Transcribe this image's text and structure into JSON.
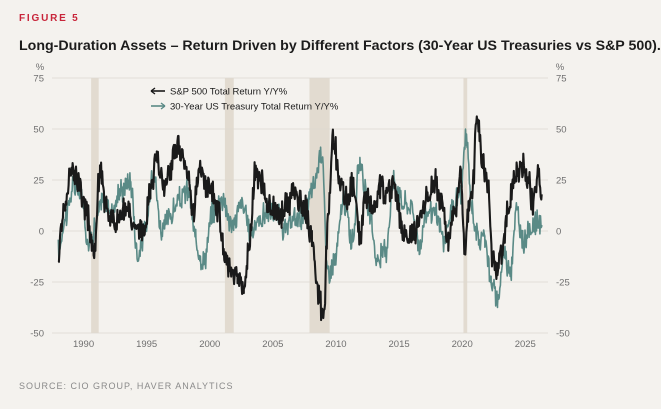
{
  "figure_label": "FIGURE 5",
  "source": "SOURCE: CIO GROUP, HAVER ANALYTICS",
  "chart_data": {
    "type": "line",
    "title": "Long-Duration Assets – Return Driven by Different Factors (30-Year US Treasuries vs S&P 500).",
    "y_unit_left": "%",
    "y_unit_right": "%",
    "ylim": [
      -50,
      75
    ],
    "xlim": [
      1987.5,
      2026.8
    ],
    "y_ticks": [
      75,
      50,
      25,
      0,
      -25,
      -50
    ],
    "y_tick_labels": [
      "75",
      "50",
      "25",
      "0",
      "-25",
      "-50"
    ],
    "x_ticks": [
      1990,
      1995,
      2000,
      2005,
      2010,
      2015,
      2020,
      2025
    ],
    "x_tick_labels": [
      "1990",
      "1995",
      "2000",
      "2005",
      "2010",
      "2015",
      "2020",
      "2025"
    ],
    "grid": "horizontal",
    "legend_placement": "top-left",
    "recessions": [
      [
        1990.6,
        1991.2
      ],
      [
        2001.2,
        2001.9
      ],
      [
        2007.9,
        2009.5
      ],
      [
        2020.1,
        2020.4
      ]
    ],
    "series": [
      {
        "name": "S&P 500 Total Return Y/Y%",
        "color": "#1a1a1a",
        "x": [
          1988.0,
          1988.5,
          1989.0,
          1989.6,
          1990.2,
          1990.8,
          1991.3,
          1991.8,
          1992.5,
          1993.2,
          1994.0,
          1994.8,
          1995.3,
          1995.8,
          1996.3,
          1996.8,
          1997.3,
          1997.8,
          1998.3,
          1998.7,
          1999.2,
          1999.7,
          2000.2,
          2000.7,
          2001.2,
          2001.7,
          2002.2,
          2002.7,
          2003.1,
          2003.6,
          2004.1,
          2004.6,
          2005.1,
          2005.6,
          2006.1,
          2006.6,
          2007.1,
          2007.6,
          2008.1,
          2008.6,
          2009.0,
          2009.4,
          2009.8,
          2010.3,
          2010.8,
          2011.4,
          2011.9,
          2012.4,
          2012.9,
          2013.5,
          2014.0,
          2014.6,
          2015.2,
          2015.8,
          2016.3,
          2016.8,
          2017.4,
          2017.9,
          2018.4,
          2018.9,
          2019.4,
          2019.9,
          2020.2,
          2020.5,
          2020.8,
          2021.2,
          2021.6,
          2022.0,
          2022.4,
          2022.8,
          2023.2,
          2023.6,
          2024.0,
          2024.4,
          2024.8,
          2025.2,
          2025.6,
          2026.0,
          2026.3
        ],
        "y": [
          -8,
          12,
          30,
          25,
          10,
          -12,
          30,
          12,
          6,
          12,
          2,
          0,
          20,
          35,
          22,
          28,
          40,
          38,
          26,
          10,
          32,
          22,
          18,
          8,
          -12,
          -18,
          -20,
          -30,
          -10,
          28,
          26,
          10,
          10,
          8,
          12,
          18,
          14,
          10,
          -4,
          -30,
          -45,
          10,
          45,
          24,
          15,
          22,
          0,
          18,
          12,
          22,
          18,
          22,
          2,
          -2,
          -1,
          10,
          18,
          24,
          14,
          -4,
          10,
          28,
          -12,
          12,
          20,
          55,
          32,
          24,
          -12,
          -18,
          -10,
          10,
          24,
          28,
          32,
          26,
          14,
          30,
          18
        ]
      },
      {
        "name": "30-Year US Treasury Total Return Y/Y%",
        "color": "#5a8a86",
        "x": [
          1988.0,
          1988.6,
          1989.2,
          1989.8,
          1990.4,
          1990.9,
          1991.5,
          1992.2,
          1993.0,
          1993.7,
          1994.3,
          1994.9,
          1995.5,
          1996.2,
          1996.9,
          1997.6,
          1998.3,
          1998.9,
          1999.5,
          2000.3,
          2001.0,
          2001.8,
          2002.5,
          2003.2,
          2003.9,
          2004.6,
          2005.3,
          2006.0,
          2006.8,
          2007.5,
          2008.2,
          2008.9,
          2009.3,
          2009.9,
          2010.6,
          2011.3,
          2011.9,
          2012.6,
          2013.3,
          2013.9,
          2014.6,
          2015.3,
          2016.0,
          2016.6,
          2017.2,
          2017.9,
          2018.6,
          2019.2,
          2019.9,
          2020.3,
          2020.8,
          2021.3,
          2021.8,
          2022.3,
          2022.8,
          2023.3,
          2023.8,
          2024.3,
          2024.8,
          2025.3,
          2025.8,
          2026.3
        ],
        "y": [
          -10,
          8,
          22,
          18,
          -6,
          2,
          15,
          10,
          20,
          25,
          -12,
          0,
          30,
          0,
          8,
          15,
          20,
          -5,
          -15,
          10,
          16,
          2,
          14,
          0,
          5,
          10,
          8,
          0,
          6,
          8,
          22,
          40,
          -20,
          -15,
          15,
          -5,
          35,
          10,
          -15,
          -10,
          25,
          14,
          12,
          -8,
          10,
          8,
          -5,
          10,
          20,
          45,
          10,
          -5,
          -2,
          -25,
          -35,
          -10,
          -20,
          10,
          -5,
          0,
          4,
          3
        ]
      }
    ]
  }
}
